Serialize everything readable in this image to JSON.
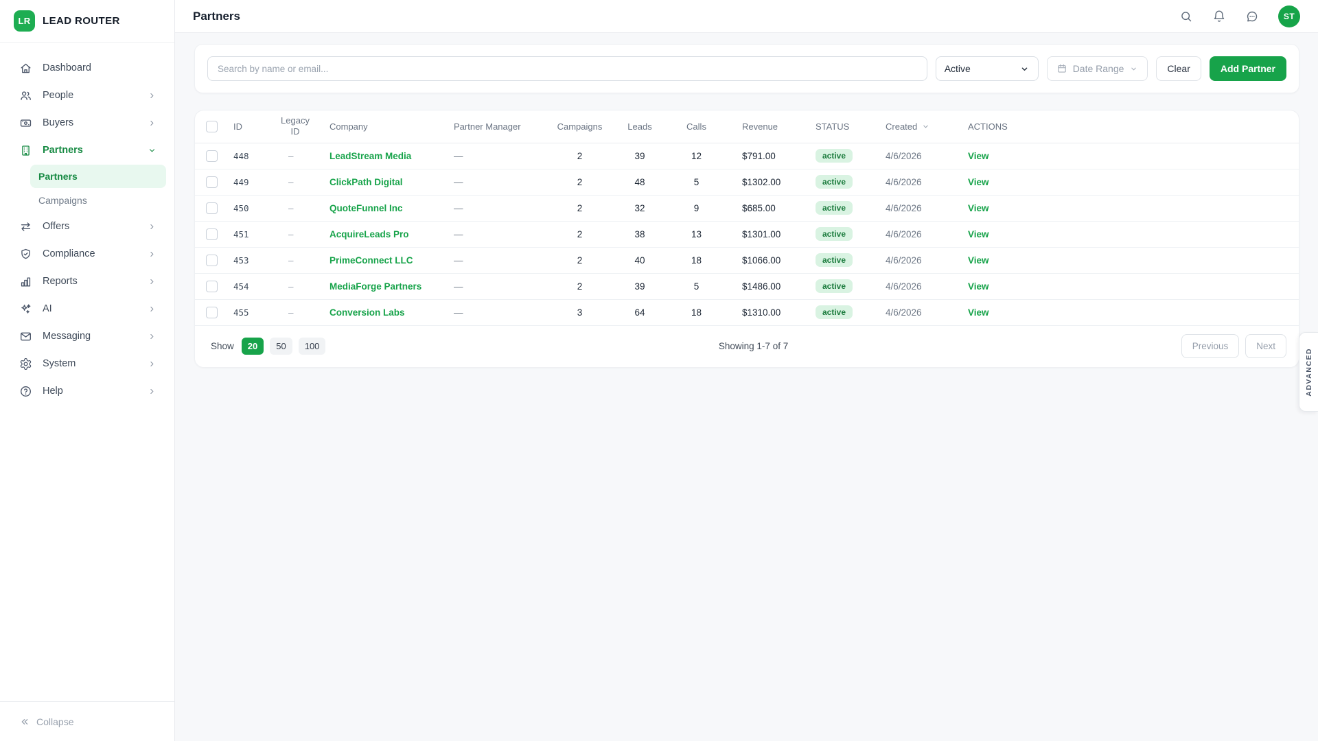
{
  "brand": {
    "logo_text": "LR",
    "name": "LEAD ROUTER"
  },
  "sidebar": {
    "items": [
      {
        "label": "Dashboard",
        "icon": "home-icon"
      },
      {
        "label": "People",
        "icon": "people-icon",
        "chevron": "right"
      },
      {
        "label": "Buyers",
        "icon": "buyers-icon",
        "chevron": "right"
      },
      {
        "label": "Partners",
        "icon": "partners-icon",
        "chevron": "down",
        "expanded": true,
        "active_parent": true,
        "children": [
          {
            "label": "Partners",
            "active": true
          },
          {
            "label": "Campaigns",
            "active": false
          }
        ]
      },
      {
        "label": "Offers",
        "icon": "offers-icon",
        "chevron": "right"
      },
      {
        "label": "Compliance",
        "icon": "compliance-icon",
        "chevron": "right"
      },
      {
        "label": "Reports",
        "icon": "reports-icon",
        "chevron": "right"
      },
      {
        "label": "AI",
        "icon": "ai-icon",
        "chevron": "right"
      },
      {
        "label": "Messaging",
        "icon": "messaging-icon",
        "chevron": "right"
      },
      {
        "label": "System",
        "icon": "system-icon",
        "chevron": "right"
      },
      {
        "label": "Help",
        "icon": "help-icon",
        "chevron": "right"
      }
    ],
    "collapse_label": "Collapse"
  },
  "header": {
    "title": "Partners",
    "icons": [
      "search-icon",
      "notifications-icon",
      "messages-icon"
    ],
    "avatar_initials": "ST"
  },
  "toolbar": {
    "search_placeholder": "Search by name or email...",
    "status_filter_value": "Active",
    "date_range_label": "Date Range",
    "date_range_icon": "calendar-icon",
    "clear_label": "Clear",
    "add_partner_label": "Add Partner"
  },
  "table": {
    "columns": [
      "",
      "ID",
      "Legacy ID",
      "Company",
      "Partner Manager",
      "Campaigns",
      "Leads",
      "Calls",
      "Revenue",
      "STATUS",
      "Created",
      "ACTIONS"
    ],
    "sorted_column": "Created",
    "rows": [
      {
        "id": "448",
        "legacy_id": "–",
        "company": "LeadStream Media",
        "partner_manager": "—",
        "campaigns": "2",
        "leads": "39",
        "calls": "12",
        "revenue": "$791.00",
        "status": "active",
        "created": "4/6/2026",
        "action": "View"
      },
      {
        "id": "449",
        "legacy_id": "–",
        "company": "ClickPath Digital",
        "partner_manager": "—",
        "campaigns": "2",
        "leads": "48",
        "calls": "5",
        "revenue": "$1302.00",
        "status": "active",
        "created": "4/6/2026",
        "action": "View"
      },
      {
        "id": "450",
        "legacy_id": "–",
        "company": "QuoteFunnel Inc",
        "partner_manager": "—",
        "campaigns": "2",
        "leads": "32",
        "calls": "9",
        "revenue": "$685.00",
        "status": "active",
        "created": "4/6/2026",
        "action": "View"
      },
      {
        "id": "451",
        "legacy_id": "–",
        "company": "AcquireLeads Pro",
        "partner_manager": "—",
        "campaigns": "2",
        "leads": "38",
        "calls": "13",
        "revenue": "$1301.00",
        "status": "active",
        "created": "4/6/2026",
        "action": "View"
      },
      {
        "id": "453",
        "legacy_id": "–",
        "company": "PrimeConnect LLC",
        "partner_manager": "—",
        "campaigns": "2",
        "leads": "40",
        "calls": "18",
        "revenue": "$1066.00",
        "status": "active",
        "created": "4/6/2026",
        "action": "View"
      },
      {
        "id": "454",
        "legacy_id": "–",
        "company": "MediaForge Partners",
        "partner_manager": "—",
        "campaigns": "2",
        "leads": "39",
        "calls": "5",
        "revenue": "$1486.00",
        "status": "active",
        "created": "4/6/2026",
        "action": "View"
      },
      {
        "id": "455",
        "legacy_id": "–",
        "company": "Conversion Labs",
        "partner_manager": "—",
        "campaigns": "3",
        "leads": "64",
        "calls": "18",
        "revenue": "$1310.00",
        "status": "active",
        "created": "4/6/2026",
        "action": "View"
      }
    ]
  },
  "pagination": {
    "show_label": "Show",
    "page_sizes": [
      "20",
      "50",
      "100"
    ],
    "active_page_size": "20",
    "summary": "Showing 1-7 of 7",
    "previous_label": "Previous",
    "next_label": "Next"
  },
  "advanced_tab_label": "ADVANCED",
  "colors": {
    "brand_green": "#17A34A",
    "badge_bg": "#D9F3E2",
    "badge_text": "#1C7C3E"
  }
}
